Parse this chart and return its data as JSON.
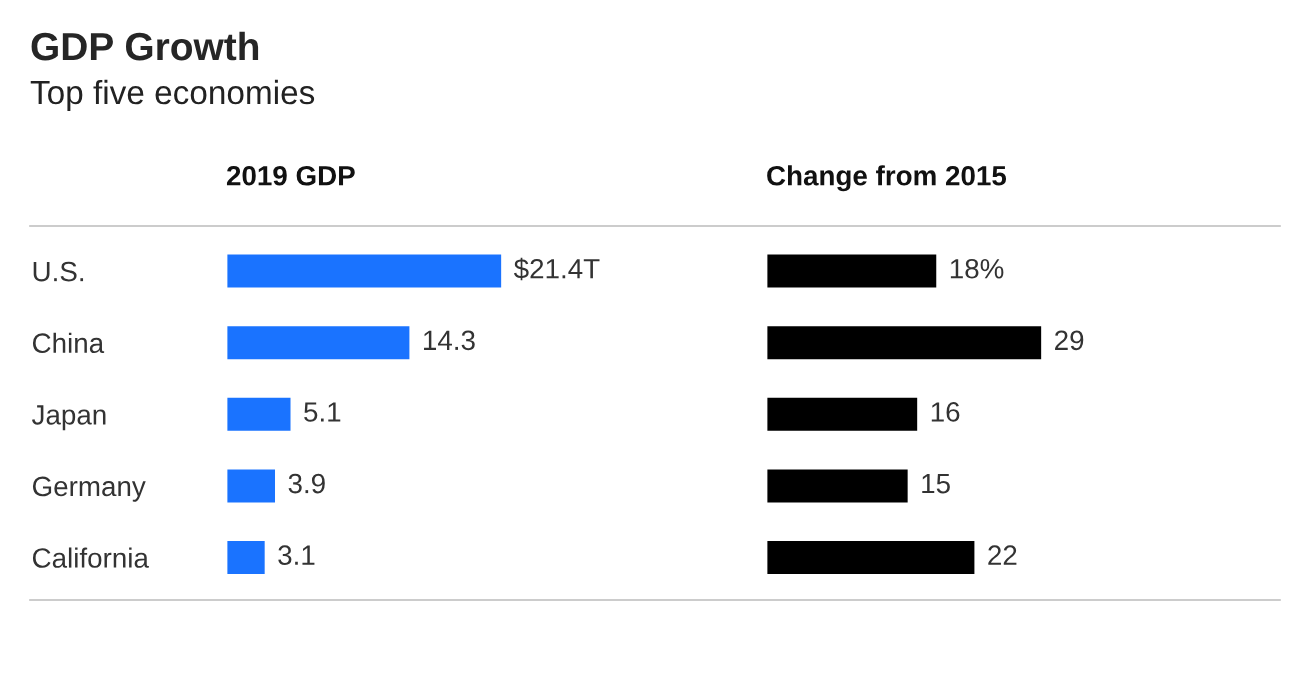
{
  "chart_data": [
    {
      "type": "bar",
      "orientation": "horizontal",
      "title": "GDP Growth",
      "subtitle": "Top five economies",
      "xlabel": "2019 GDP",
      "categories": [
        "U.S.",
        "China",
        "Japan",
        "Germany",
        "California"
      ],
      "values": [
        21.4,
        14.3,
        5.1,
        3.9,
        3.1
      ],
      "value_labels": [
        "$21.4T",
        "14.3",
        "5.1",
        "3.9",
        "3.1"
      ],
      "color": "#1a73ff",
      "tick_labels": "y",
      "grid": false,
      "legend": false
    },
    {
      "type": "bar",
      "orientation": "horizontal",
      "xlabel": "Change from 2015",
      "categories": [
        null,
        null,
        null,
        null,
        null
      ],
      "values": [
        18,
        29,
        16,
        15,
        22
      ],
      "value_labels": [
        "18%",
        "29",
        "16",
        "15",
        "22"
      ],
      "color": "#000000",
      "tick_labels": false,
      "grid": false,
      "legend": false
    }
  ]
}
